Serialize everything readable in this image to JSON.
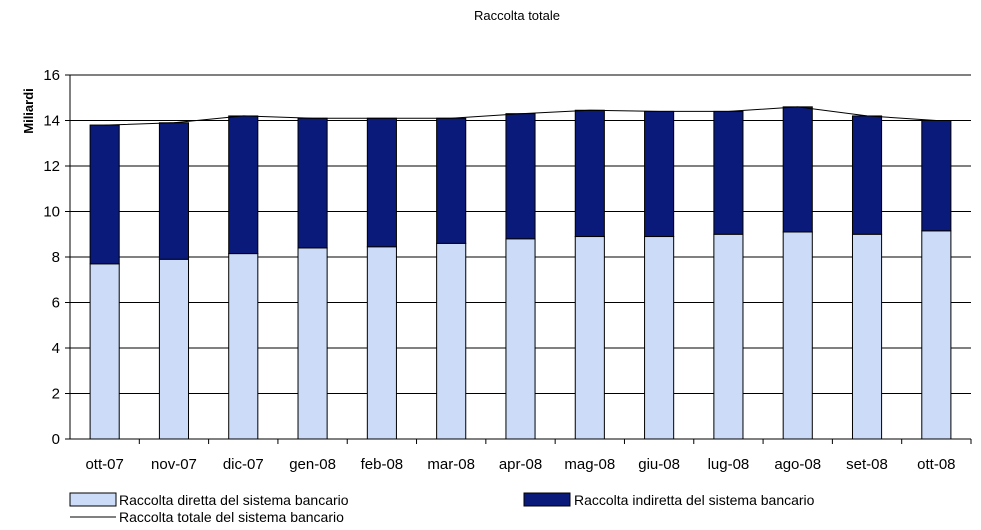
{
  "chart_data": {
    "type": "bar",
    "title": "Raccolta totale",
    "xlabel": "",
    "ylabel": "Miliardi",
    "ylim": [
      0,
      16
    ],
    "yticks": [
      0,
      2,
      4,
      6,
      8,
      10,
      12,
      14,
      16
    ],
    "grid": true,
    "stacked": true,
    "legend_position": "bottom",
    "categories": [
      "ott-07",
      "nov-07",
      "dic-07",
      "gen-08",
      "feb-08",
      "mar-08",
      "apr-08",
      "mag-08",
      "giu-08",
      "lug-08",
      "ago-08",
      "set-08",
      "ott-08"
    ],
    "series": [
      {
        "name": "Raccolta diretta del sistema bancario",
        "kind": "bar",
        "color": "#ccdcf8",
        "values": [
          7.7,
          7.9,
          8.15,
          8.4,
          8.45,
          8.6,
          8.8,
          8.9,
          8.9,
          9.0,
          9.1,
          9.0,
          9.15
        ]
      },
      {
        "name": "Raccolta indiretta del sistema bancario",
        "kind": "bar",
        "color": "#0a1a7a",
        "values": [
          6.1,
          6.0,
          6.05,
          5.7,
          5.65,
          5.5,
          5.5,
          5.55,
          5.5,
          5.4,
          5.5,
          5.2,
          4.85
        ]
      },
      {
        "name": "Raccolta totale del sistema bancario",
        "kind": "line",
        "color": "#000000",
        "values": [
          13.8,
          13.9,
          14.2,
          14.1,
          14.1,
          14.1,
          14.3,
          14.45,
          14.4,
          14.4,
          14.6,
          14.2,
          14.0
        ]
      }
    ]
  }
}
